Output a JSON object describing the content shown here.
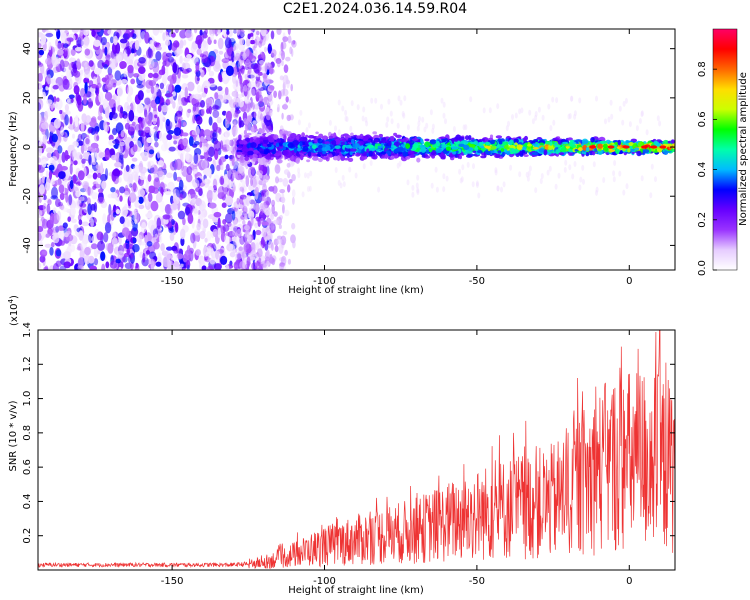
{
  "title": "C2E1.2024.036.14.59.R04",
  "chart_data": [
    {
      "type": "heatmap",
      "xlabel": "Height of straight line (km)",
      "ylabel": "Frequency (Hz)",
      "xlim": [
        -194,
        15
      ],
      "ylim": [
        -50,
        48
      ],
      "xticks": [
        -150,
        -100,
        -50,
        0
      ],
      "yticks": [
        -40,
        -20,
        0,
        20,
        40
      ],
      "colorbar": {
        "label": "Normalized spectral amplitude",
        "range": [
          0,
          0.96
        ],
        "ticks": [
          0.0,
          0.2,
          0.4,
          0.6,
          0.8
        ],
        "tick_labels": [
          "0.0",
          "0.2",
          "0.4",
          "0.6",
          "0.8"
        ],
        "colormap": [
          "#ffffff",
          "#e6ccff",
          "#9933ff",
          "#6600ff",
          "#0000ff",
          "#00bbff",
          "#00ffaa",
          "#00ff00",
          "#ccff00",
          "#ffdd00",
          "#ff6600",
          "#ff0000",
          "#ff0066"
        ]
      },
      "regions": [
        {
          "name": "noise",
          "x_range": [
            -194,
            -125
          ],
          "f_range": [
            -50,
            48
          ],
          "amplitude": 0.2
        },
        {
          "name": "signal",
          "x_range": [
            -128,
            15
          ],
          "center_hz": 0,
          "width_hz_start": 8,
          "width_hz_end": 3,
          "amplitude_start": 0.35,
          "amplitude_end": 0.92
        }
      ]
    },
    {
      "type": "line",
      "xlabel": "Height of straight line (km)",
      "ylabel": "SNR (10 * v/v)",
      "y_multiplier": "(x10",
      "y_multiplier_exp": "4",
      "y_multiplier_close": ")",
      "xlim": [
        -194,
        15
      ],
      "ylim": [
        0,
        14000
      ],
      "xticks": [
        -150,
        -100,
        -50,
        0
      ],
      "yticks": [
        2000,
        4000,
        6000,
        8000,
        10000,
        12000,
        14000
      ],
      "ytick_labels": [
        "0.2",
        "0.4",
        "0.6",
        "0.8",
        "1.0",
        "1.2",
        "1.4"
      ],
      "series_color": "#ee3333",
      "envelope": [
        {
          "x": -194,
          "y": 300
        },
        {
          "x": -130,
          "y": 300
        },
        {
          "x": -121,
          "y": 400
        },
        {
          "x": -110,
          "y": 900
        },
        {
          "x": -100,
          "y": 1400
        },
        {
          "x": -85,
          "y": 1900
        },
        {
          "x": -70,
          "y": 2300
        },
        {
          "x": -55,
          "y": 3000
        },
        {
          "x": -40,
          "y": 3600
        },
        {
          "x": -25,
          "y": 4000
        },
        {
          "x": -15,
          "y": 5200
        },
        {
          "x": -5,
          "y": 6200
        },
        {
          "x": 5,
          "y": 6500
        },
        {
          "x": 15,
          "y": 6000
        }
      ],
      "peaks": [
        {
          "x": -34,
          "y": 8700
        },
        {
          "x": -17,
          "y": 11200
        },
        {
          "x": -11,
          "y": 10700
        },
        {
          "x": -3,
          "y": 11800
        },
        {
          "x": 10,
          "y": 14000
        },
        {
          "x": 12,
          "y": 12100
        }
      ]
    }
  ]
}
